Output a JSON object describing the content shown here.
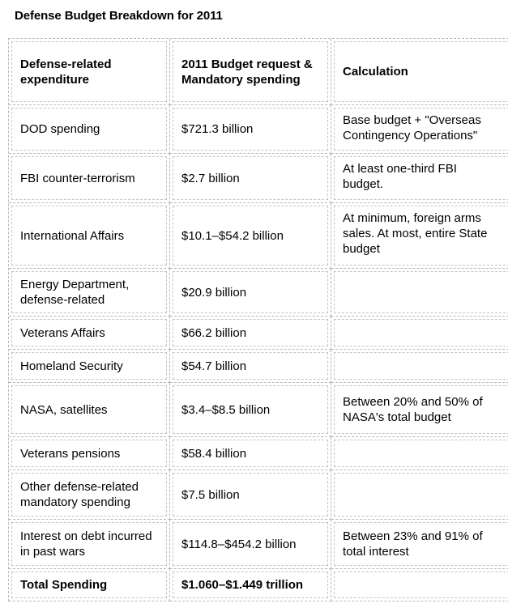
{
  "title": "Defense Budget Breakdown for 2011",
  "headers": {
    "expenditure": "Defense-related expenditure",
    "budget": "2011 Budget request & Mandatory spending",
    "calculation": "Calculation"
  },
  "rows": [
    {
      "expenditure": "DOD spending",
      "budget": "$721.3 billion",
      "calculation": "Base budget + \"Overseas Contingency Operations\""
    },
    {
      "expenditure": "FBI counter-terrorism",
      "budget": "$2.7 billion",
      "calculation": "At least one-third FBI budget."
    },
    {
      "expenditure": "International Affairs",
      "budget": "$10.1–$54.2 billion",
      "calculation": "At minimum, foreign arms sales. At most, entire State budget"
    },
    {
      "expenditure": "Energy Department, defense-related",
      "budget": "$20.9 billion",
      "calculation": ""
    },
    {
      "expenditure": "Veterans Affairs",
      "budget": "$66.2 billion",
      "calculation": ""
    },
    {
      "expenditure": "Homeland Security",
      "budget": "$54.7 billion",
      "calculation": ""
    },
    {
      "expenditure": "NASA, satellites",
      "budget": "$3.4–$8.5 billion",
      "calculation": "Between 20% and 50% of NASA's total budget"
    },
    {
      "expenditure": "Veterans pensions",
      "budget": "$58.4 billion",
      "calculation": ""
    },
    {
      "expenditure": "Other defense-related mandatory spending",
      "budget": "$7.5 billion",
      "calculation": ""
    },
    {
      "expenditure": "Interest on debt incurred in past wars",
      "budget": "$114.8–$454.2 billion",
      "calculation": "Between 23% and 91% of total interest"
    }
  ],
  "total": {
    "expenditure": "Total Spending",
    "budget": "$1.060–$1.449 trillion",
    "calculation": ""
  }
}
